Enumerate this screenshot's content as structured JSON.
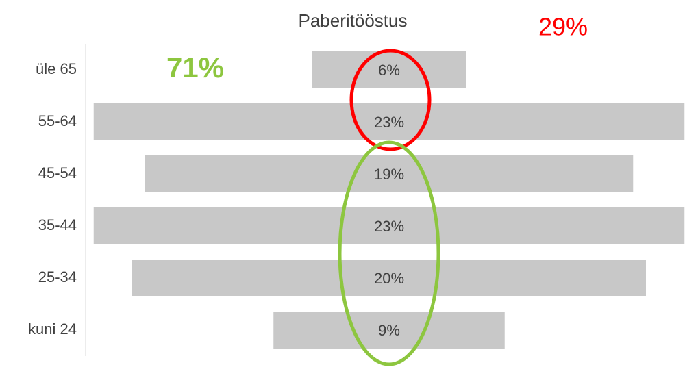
{
  "chart_data": {
    "type": "funnel",
    "title": "Paberitööstus",
    "categories": [
      "üle 65",
      "55-64",
      "45-54",
      "35-44",
      "25-34",
      "kuni 24"
    ],
    "values": [
      6,
      23,
      19,
      23,
      20,
      9
    ],
    "value_labels": [
      "6%",
      "23%",
      "19%",
      "23%",
      "20%",
      "9%"
    ],
    "color": "#c8c8c8",
    "annotations": [
      {
        "text": "71%",
        "color": "#8dc63f"
      },
      {
        "text": "29%",
        "color": "#ff0000"
      }
    ]
  }
}
